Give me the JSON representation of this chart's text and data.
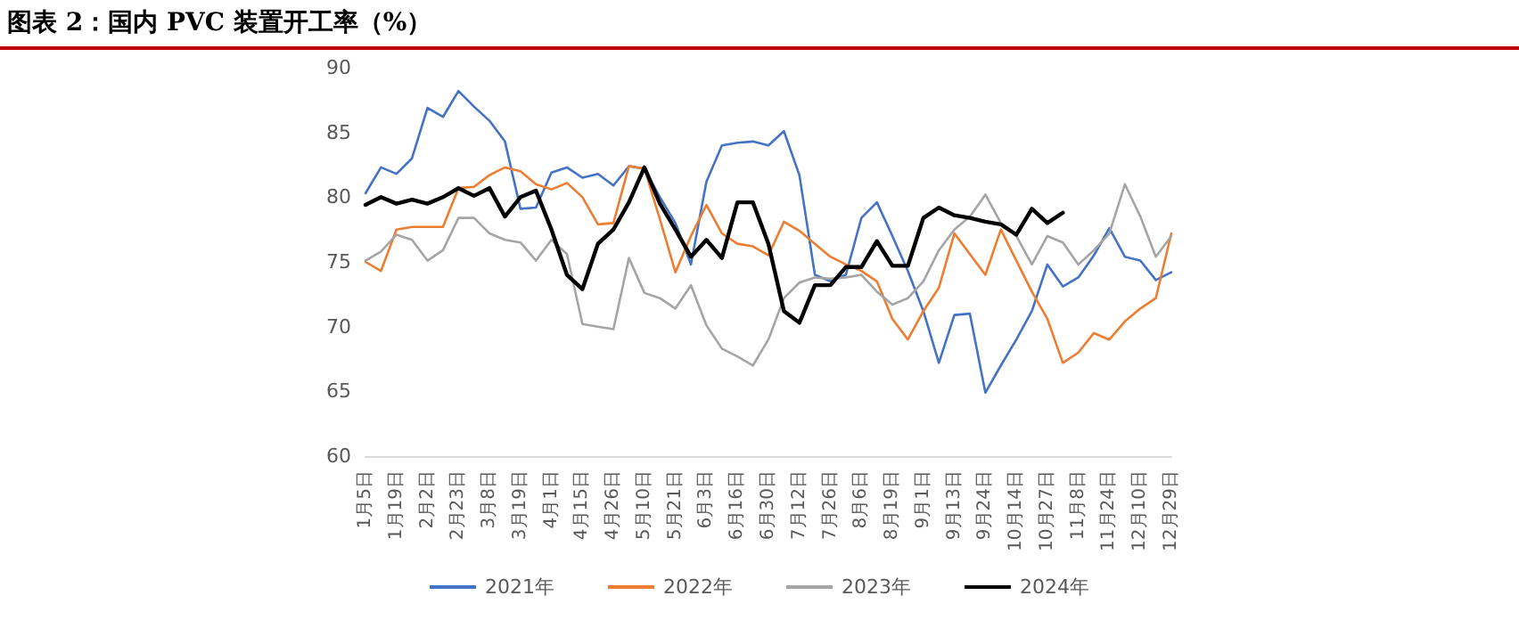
{
  "chart_data": {
    "type": "line",
    "title": "图表 2：国内 PVC 装置开工率（%）",
    "categories": [
      "1月5日",
      null,
      "1月19日",
      null,
      "2月2日",
      null,
      "2月23日",
      null,
      "3月8日",
      null,
      "3月19日",
      null,
      "4月1日",
      null,
      "4月15日",
      null,
      "4月26日",
      null,
      "5月10日",
      null,
      "5月21日",
      null,
      "6月3日",
      null,
      "6月16日",
      null,
      "6月30日",
      null,
      "7月12日",
      null,
      "7月26日",
      null,
      "8月6日",
      null,
      "8月19日",
      null,
      "9月1日",
      null,
      "9月13日",
      null,
      "9月24日",
      null,
      "10月14日",
      null,
      "10月27日",
      null,
      "11月8日",
      null,
      "11月24日",
      null,
      "12月10日",
      null,
      "12月29日"
    ],
    "series": [
      {
        "name": "2021年",
        "color": "#4472c4",
        "values": [
          80.3,
          82.3,
          81.8,
          83,
          86.9,
          86.2,
          88.2,
          87,
          85.9,
          84.3,
          79.1,
          79.2,
          81.9,
          82.3,
          81.5,
          81.8,
          80.9,
          82.4,
          82.2,
          80,
          78,
          74.8,
          81.2,
          84,
          84.2,
          84.3,
          84,
          85.1,
          81.7,
          74,
          73.5,
          74,
          78.4,
          79.6,
          77,
          74.3,
          71.2,
          67.2,
          70.9,
          71,
          64.9,
          67,
          69,
          71.2,
          74.8,
          73.1,
          73.8,
          75.5,
          77.6,
          75.4,
          75.1,
          73.6,
          74.2
        ]
      },
      {
        "name": "2022年",
        "color": "#ed7d31",
        "values": [
          75,
          74.3,
          77.5,
          77.7,
          77.7,
          77.7,
          80.7,
          80.8,
          81.7,
          82.3,
          82,
          81,
          80.6,
          81.1,
          80,
          77.9,
          78,
          82.4,
          82.2,
          78.3,
          74.2,
          77,
          79.4,
          77.2,
          76.4,
          76.2,
          75.5,
          78.1,
          77.4,
          76.4,
          75.4,
          74.8,
          74.3,
          73.5,
          70.6,
          69,
          71.2,
          73,
          77.2,
          75.6,
          74,
          77.5,
          75.1,
          72.7,
          70.6,
          67.2,
          68,
          69.5,
          69,
          70.4,
          71.4,
          72.2,
          77.2
        ]
      },
      {
        "name": "2023年",
        "color": "#a5a5a5",
        "values": [
          75.1,
          75.8,
          77.1,
          76.7,
          75.1,
          75.9,
          78.4,
          78.4,
          77.2,
          76.7,
          76.5,
          75.1,
          76.7,
          75.6,
          70.2,
          70,
          69.8,
          75.3,
          72.6,
          72.2,
          71.4,
          73.2,
          70.1,
          68.3,
          67.7,
          67,
          69,
          72.2,
          73.4,
          73.8,
          73.7,
          73.8,
          74,
          72.7,
          71.7,
          72.2,
          73.5,
          75.9,
          77.5,
          78.5,
          80.2,
          78,
          77,
          74.8,
          77,
          76.5,
          74.8,
          75.9,
          77.2,
          81,
          78.5,
          75.4,
          77
        ]
      },
      {
        "name": "2024年",
        "color": "#000000",
        "values": [
          79.4,
          80,
          79.5,
          79.8,
          79.5,
          80,
          80.7,
          80.1,
          80.7,
          78.5,
          80,
          80.5,
          77.5,
          74,
          72.9,
          76.4,
          77.5,
          79.6,
          82.3,
          79.5,
          77.5,
          75.4,
          76.7,
          75.3,
          79.6,
          79.6,
          76.4,
          71.2,
          70.3,
          73.2,
          73.2,
          74.6,
          74.6,
          76.6,
          74.7,
          74.7,
          78.4,
          79.2,
          78.6,
          78.4,
          78.1,
          77.9,
          77.1,
          79.1,
          78,
          78.8,
          null,
          null,
          null,
          null,
          null,
          null,
          null
        ]
      }
    ],
    "ylim": [
      60,
      90
    ],
    "yticks": [
      60,
      65,
      70,
      75,
      80,
      85,
      90
    ],
    "grid": false,
    "legend": "bottom",
    "marker": "none",
    "line_style": "solid"
  }
}
